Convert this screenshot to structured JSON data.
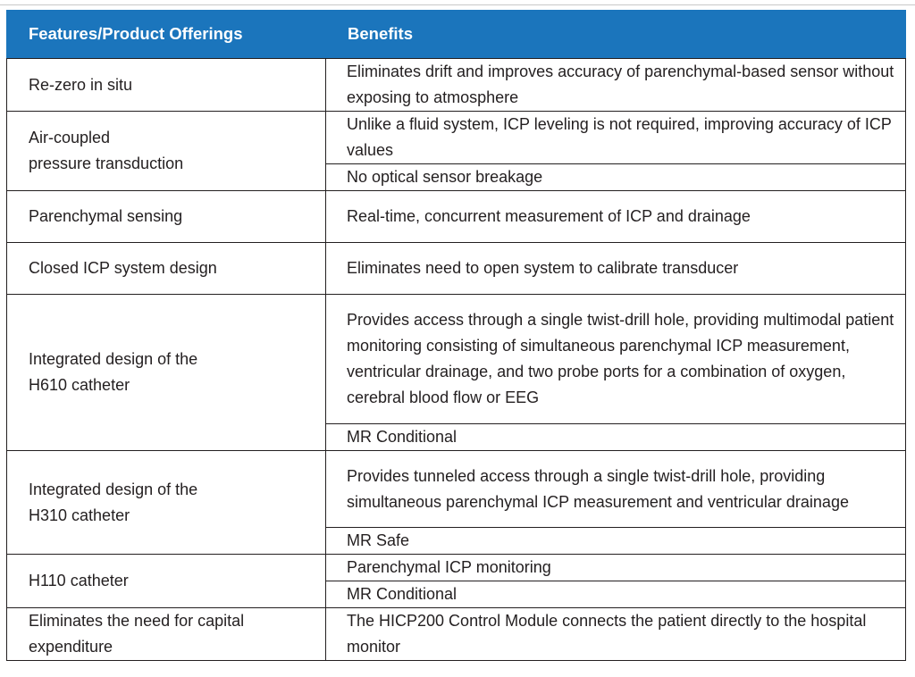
{
  "table": {
    "headers": {
      "features": "Features/Product Offerings",
      "benefits": "Benefits"
    },
    "rows": [
      {
        "feature": "Re-zero in situ",
        "benefits": [
          "Eliminates drift and improves accuracy of parenchymal-based sensor without exposing to atmosphere"
        ]
      },
      {
        "feature_line1": "Air-coupled",
        "feature_line2": "pressure transduction",
        "benefits": [
          "Unlike a fluid system, ICP leveling is not required, improving accuracy of ICP values",
          "No optical sensor breakage"
        ]
      },
      {
        "feature": "Parenchymal sensing",
        "benefits": [
          "Real-time, concurrent measurement of ICP and drainage"
        ]
      },
      {
        "feature": "Closed ICP system design",
        "benefits": [
          "Eliminates need to open system to calibrate transducer"
        ]
      },
      {
        "feature_line1": "Integrated design of the",
        "feature_line2": "H610 catheter",
        "benefits": [
          "Provides access through a single twist-drill hole, providing multimodal patient monitoring consisting of simultaneous parenchymal ICP measurement, ventricular drainage, and two probe ports for a combination of oxygen, cerebral blood flow or EEG",
          "MR Conditional"
        ]
      },
      {
        "feature_line1": "Integrated design of the",
        "feature_line2": "H310 catheter",
        "benefits": [
          "Provides tunneled access through a single twist-drill hole, providing simultaneous parenchymal ICP measurement and ventricular drainage",
          "MR Safe"
        ]
      },
      {
        "feature": "H110 catheter",
        "benefits": [
          "Parenchymal ICP monitoring",
          "MR Conditional"
        ]
      },
      {
        "feature_line1": "Eliminates the need for capital",
        "feature_line2": "expenditure",
        "benefits": [
          "The HICP200 Control Module connects the patient directly to the hospital monitor"
        ]
      }
    ]
  }
}
